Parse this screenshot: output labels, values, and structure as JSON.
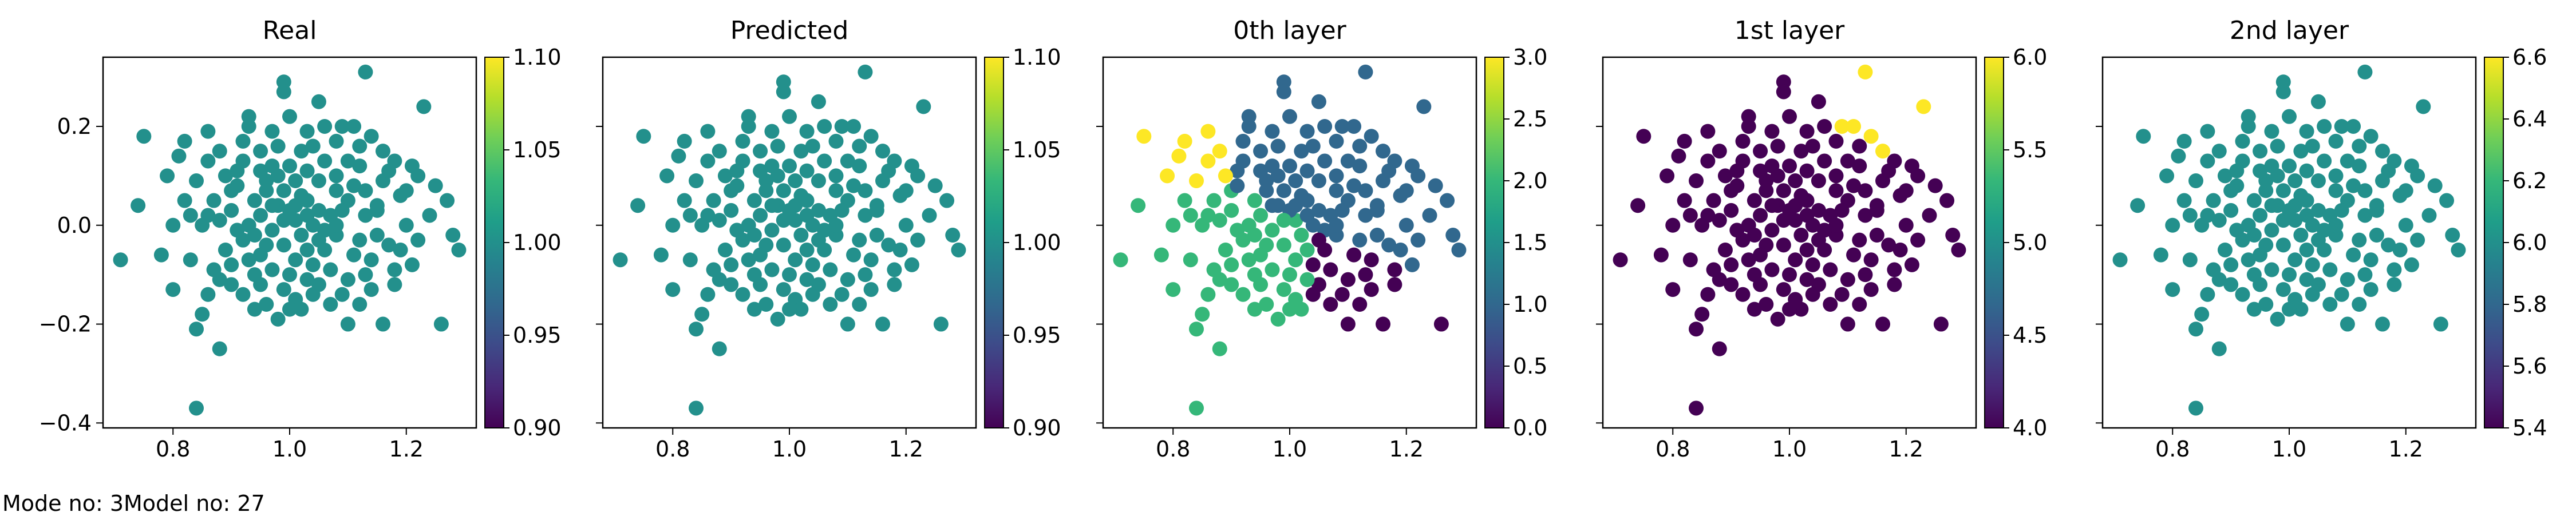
{
  "footer": {
    "mode_text": "Mode no: 3",
    "model_text": "Model no: 27"
  },
  "colormap": "viridis",
  "chart_data": [
    {
      "type": "scatter",
      "title": "Real",
      "xlim": [
        0.68,
        1.32
      ],
      "ylim": [
        -0.41,
        0.34
      ],
      "xticks": [
        "0.8",
        "1.0",
        "1.2"
      ],
      "xtick_values": [
        0.8,
        1.0,
        1.2
      ],
      "yticks": [
        "0.2",
        "0.0",
        "−0.2",
        "−0.4"
      ],
      "ytick_values": [
        0.2,
        0.0,
        -0.2,
        -0.4
      ],
      "colorbar": {
        "range": [
          0.9,
          1.1
        ],
        "ticks": [
          "1.10",
          "1.05",
          "1.00",
          "0.95",
          "0.90"
        ],
        "tick_values": [
          1.1,
          1.05,
          1.0,
          0.95,
          0.9
        ]
      },
      "color_rule": "constant",
      "constant_value": 1.0
    },
    {
      "type": "scatter",
      "title": "Predicted",
      "xlim": [
        0.68,
        1.32
      ],
      "ylim": [
        -0.41,
        0.34
      ],
      "xticks": [
        "0.8",
        "1.0",
        "1.2"
      ],
      "xtick_values": [
        0.8,
        1.0,
        1.2
      ],
      "yticks": [],
      "ytick_values": [
        0.2,
        0.0,
        -0.2,
        -0.4
      ],
      "colorbar": {
        "range": [
          0.9,
          1.1
        ],
        "ticks": [
          "1.10",
          "1.05",
          "1.00",
          "0.95",
          "0.90"
        ],
        "tick_values": [
          1.1,
          1.05,
          1.0,
          0.95,
          0.9
        ]
      },
      "color_rule": "constant",
      "constant_value": 1.0
    },
    {
      "type": "scatter",
      "title": "0th layer",
      "xlim": [
        0.68,
        1.32
      ],
      "ylim": [
        -0.41,
        0.34
      ],
      "xticks": [
        "0.8",
        "1.0",
        "1.2"
      ],
      "xtick_values": [
        0.8,
        1.0,
        1.2
      ],
      "yticks": [],
      "ytick_values": [
        0.2,
        0.0,
        -0.2,
        -0.4
      ],
      "colorbar": {
        "range": [
          0.0,
          3.0
        ],
        "ticks": [
          "3.0",
          "2.5",
          "2.0",
          "1.5",
          "1.0",
          "0.5",
          "0.0"
        ],
        "tick_values": [
          3.0,
          2.5,
          2.0,
          1.5,
          1.0,
          0.5,
          0.0
        ]
      },
      "color_rule": "quadrant",
      "quadrant_values": [
        0,
        1,
        2,
        3
      ]
    },
    {
      "type": "scatter",
      "title": "1st layer",
      "xlim": [
        0.68,
        1.32
      ],
      "ylim": [
        -0.41,
        0.34
      ],
      "xticks": [
        "0.8",
        "1.0",
        "1.2"
      ],
      "xtick_values": [
        0.8,
        1.0,
        1.2
      ],
      "yticks": [],
      "ytick_values": [
        0.2,
        0.0,
        -0.2,
        -0.4
      ],
      "colorbar": {
        "range": [
          4.0,
          6.0
        ],
        "ticks": [
          "6.0",
          "5.5",
          "5.0",
          "4.5",
          "4.0"
        ],
        "tick_values": [
          6.0,
          5.5,
          5.0,
          4.5,
          4.0
        ]
      },
      "color_rule": "corner",
      "low_value": 4,
      "high_value": 6
    },
    {
      "type": "scatter",
      "title": "2nd layer",
      "xlim": [
        0.68,
        1.32
      ],
      "ylim": [
        -0.41,
        0.34
      ],
      "xticks": [
        "0.8",
        "1.0",
        "1.2"
      ],
      "xtick_values": [
        0.8,
        1.0,
        1.2
      ],
      "yticks": [],
      "ytick_values": [
        0.2,
        0.0,
        -0.2,
        -0.4
      ],
      "colorbar": {
        "range": [
          5.4,
          6.6
        ],
        "ticks": [
          "6.6",
          "6.4",
          "6.2",
          "6.0",
          "5.8",
          "5.6",
          "5.4"
        ],
        "tick_values": [
          6.6,
          6.4,
          6.2,
          6.0,
          5.8,
          5.6,
          5.4
        ]
      },
      "color_rule": "constant",
      "constant_value": 6.0
    }
  ],
  "points": [
    [
      1.13,
      0.31
    ],
    [
      0.99,
      0.29
    ],
    [
      0.99,
      0.27
    ],
    [
      0.84,
      -0.37
    ],
    [
      0.71,
      -0.07
    ],
    [
      0.88,
      -0.25
    ],
    [
      1.26,
      -0.2
    ],
    [
      1.29,
      -0.05
    ],
    [
      0.75,
      0.18
    ],
    [
      0.82,
      0.17
    ],
    [
      1.23,
      0.24
    ],
    [
      1.05,
      0.25
    ],
    [
      1.16,
      0.15
    ],
    [
      0.79,
      0.1
    ],
    [
      0.74,
      0.04
    ],
    [
      0.84,
      -0.21
    ],
    [
      0.85,
      -0.18
    ],
    [
      1.27,
      0.05
    ],
    [
      1.28,
      -0.02
    ],
    [
      1.22,
      0.1
    ],
    [
      0.93,
      0.22
    ],
    [
      1.1,
      -0.2
    ],
    [
      1.16,
      -0.2
    ],
    [
      0.78,
      -0.06
    ],
    [
      0.8,
      0.0
    ],
    [
      1.2,
      0.0
    ],
    [
      0.86,
      0.02
    ],
    [
      1.08,
      0.17
    ],
    [
      1.0,
      0.12
    ],
    [
      0.97,
      -0.09
    ],
    [
      1.03,
      0.05
    ],
    [
      0.92,
      -0.03
    ],
    [
      1.06,
      -0.05
    ],
    [
      1.11,
      0.08
    ],
    [
      0.9,
      0.07
    ],
    [
      1.14,
      -0.07
    ],
    [
      0.95,
      0.15
    ],
    [
      1.01,
      -0.15
    ],
    [
      0.88,
      -0.11
    ],
    [
      1.18,
      -0.12
    ],
    [
      1.09,
      -0.14
    ],
    [
      0.94,
      -0.17
    ],
    [
      1.03,
      0.19
    ],
    [
      0.86,
      0.13
    ],
    [
      1.12,
      0.12
    ],
    [
      0.98,
      0.04
    ],
    [
      1.02,
      -0.02
    ],
    [
      1.07,
      0.02
    ],
    [
      0.96,
      -0.04
    ],
    [
      1.05,
      0.09
    ],
    [
      0.91,
      0.11
    ],
    [
      1.15,
      0.03
    ],
    [
      0.83,
      -0.07
    ],
    [
      1.19,
      0.06
    ],
    [
      1.0,
      -0.1
    ],
    [
      1.04,
      -0.08
    ],
    [
      0.99,
      0.07
    ],
    [
      0.93,
      0.0
    ],
    [
      1.08,
      -0.02
    ],
    [
      1.01,
      0.01
    ],
    [
      0.89,
      -0.05
    ],
    [
      1.13,
      -0.1
    ],
    [
      0.97,
      0.12
    ],
    [
      1.1,
      0.05
    ],
    [
      1.06,
      0.13
    ],
    [
      0.95,
      -0.12
    ],
    [
      1.17,
      -0.04
    ],
    [
      0.87,
      0.05
    ],
    [
      1.02,
      0.15
    ],
    [
      0.92,
      -0.14
    ],
    [
      1.12,
      -0.16
    ],
    [
      0.98,
      -0.19
    ],
    [
      1.05,
      -0.12
    ],
    [
      0.84,
      0.09
    ],
    [
      1.21,
      -0.08
    ],
    [
      0.9,
      -0.08
    ],
    [
      1.08,
      0.1
    ],
    [
      1.03,
      -0.05
    ],
    [
      0.96,
      0.09
    ],
    [
      1.0,
      0.03
    ],
    [
      0.97,
      0.19
    ],
    [
      1.09,
      0.2
    ],
    [
      0.92,
      0.17
    ],
    [
      1.14,
      0.18
    ],
    [
      0.86,
      0.19
    ],
    [
      1.18,
      0.13
    ],
    [
      0.8,
      -0.13
    ],
    [
      1.24,
      0.02
    ],
    [
      0.82,
      0.05
    ],
    [
      1.22,
      -0.03
    ],
    [
      1.11,
      -0.06
    ],
    [
      0.94,
      0.05
    ],
    [
      1.04,
      0.0
    ],
    [
      1.07,
      -0.09
    ],
    [
      0.99,
      -0.13
    ],
    [
      1.01,
      0.09
    ],
    [
      0.95,
      0.02
    ],
    [
      1.03,
      0.11
    ],
    [
      0.91,
      -0.01
    ],
    [
      1.13,
      0.02
    ],
    [
      0.88,
      0.15
    ],
    [
      1.16,
      0.09
    ],
    [
      1.0,
      0.22
    ],
    [
      0.96,
      -0.16
    ],
    [
      1.06,
      0.2
    ],
    [
      0.93,
      -0.07
    ],
    [
      1.1,
      -0.11
    ],
    [
      1.02,
      -0.17
    ],
    [
      0.9,
      0.03
    ],
    [
      1.15,
      -0.02
    ],
    [
      0.98,
      0.16
    ],
    [
      1.08,
      0.07
    ],
    [
      0.85,
      0.0
    ],
    [
      1.2,
      0.07
    ],
    [
      1.04,
      0.16
    ],
    [
      0.94,
      -0.1
    ],
    [
      1.12,
      0.16
    ],
    [
      0.97,
      -0.01
    ],
    [
      1.05,
      0.03
    ],
    [
      1.01,
      -0.07
    ],
    [
      0.89,
      0.1
    ],
    [
      1.17,
      0.11
    ],
    [
      0.92,
      0.13
    ],
    [
      1.1,
      0.13
    ],
    [
      1.07,
      -0.16
    ],
    [
      0.96,
      0.07
    ],
    [
      1.03,
      -0.11
    ],
    [
      0.99,
      -0.04
    ],
    [
      1.14,
      -0.13
    ],
    [
      0.87,
      -0.09
    ],
    [
      1.19,
      -0.05
    ],
    [
      0.83,
      0.02
    ],
    [
      1.09,
      0.03
    ],
    [
      0.95,
      -0.06
    ],
    [
      1.02,
      0.06
    ],
    [
      1.06,
      -0.01
    ],
    [
      0.91,
      0.08
    ],
    [
      1.13,
      0.07
    ],
    [
      0.98,
      0.1
    ],
    [
      1.04,
      -0.14
    ],
    [
      0.86,
      -0.14
    ],
    [
      1.21,
      0.12
    ],
    [
      0.81,
      0.14
    ],
    [
      1.25,
      0.08
    ],
    [
      0.93,
      0.2
    ],
    [
      1.11,
      0.2
    ],
    [
      1.0,
      -0.17
    ],
    [
      0.97,
      0.04
    ],
    [
      1.05,
      -0.03
    ],
    [
      1.08,
      0.0
    ],
    [
      0.94,
      -0.02
    ],
    [
      1.01,
      0.04
    ],
    [
      1.15,
      0.04
    ],
    [
      0.9,
      -0.12
    ],
    [
      1.18,
      -0.09
    ],
    [
      0.88,
      0.01
    ],
    [
      1.12,
      -0.03
    ],
    [
      0.95,
      0.11
    ],
    [
      1.03,
      0.02
    ],
    [
      0.99,
      0.01
    ]
  ]
}
